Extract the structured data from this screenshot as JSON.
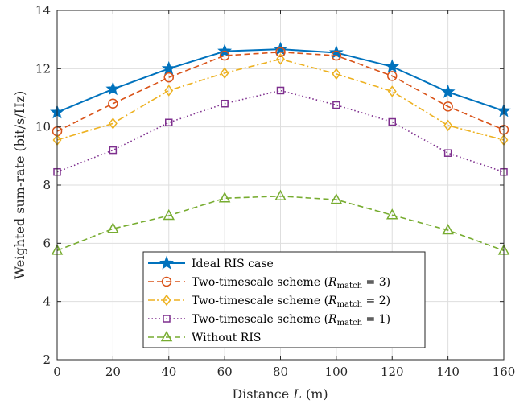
{
  "chart_data": {
    "type": "line",
    "title": "",
    "xlabel": "Distance L (m)",
    "ylabel": "Weighted sum-rate (bit/s/Hz)",
    "xlim": [
      0,
      160
    ],
    "ylim": [
      2,
      14
    ],
    "xticks": [
      0,
      20,
      40,
      60,
      80,
      100,
      120,
      140,
      160
    ],
    "yticks": [
      2,
      4,
      6,
      8,
      10,
      12,
      14
    ],
    "grid": true,
    "legend_position": "bottom-center",
    "x": [
      0,
      20,
      40,
      60,
      80,
      100,
      120,
      140,
      160
    ],
    "series": [
      {
        "name": "Ideal RIS case",
        "color": "#0072BD",
        "dash": "solid",
        "marker": "star",
        "values": [
          10.5,
          11.3,
          12.0,
          12.6,
          12.67,
          12.55,
          12.07,
          11.2,
          10.55
        ]
      },
      {
        "name": "Two-timescale scheme (R_match = 3)",
        "name_main": "Two-timescale scheme (",
        "name_var": "R",
        "name_sub": "match",
        "name_tail": " = 3)",
        "color": "#D95319",
        "dash": "dashed",
        "marker": "circle",
        "values": [
          9.85,
          10.8,
          11.7,
          12.45,
          12.57,
          12.45,
          11.75,
          10.7,
          9.9
        ]
      },
      {
        "name": "Two-timescale scheme (R_match = 2)",
        "name_main": "Two-timescale scheme (",
        "name_var": "R",
        "name_sub": "match",
        "name_tail": " = 2)",
        "color": "#EDB120",
        "dash": "dashdot",
        "marker": "diamond",
        "values": [
          9.55,
          10.12,
          11.25,
          11.85,
          12.33,
          11.82,
          11.22,
          10.05,
          9.55
        ]
      },
      {
        "name": "Two-timescale scheme (R_match = 1)",
        "name_main": "Two-timescale scheme (",
        "name_var": "R",
        "name_sub": "match",
        "name_tail": " = 1)",
        "color": "#7E2F8E",
        "dash": "dotted",
        "marker": "square",
        "values": [
          8.45,
          9.2,
          10.15,
          10.8,
          11.25,
          10.75,
          10.17,
          9.1,
          8.45
        ]
      },
      {
        "name": "Without RIS",
        "color": "#77AC30",
        "dash": "dashed",
        "marker": "triangle",
        "values": [
          5.75,
          6.5,
          6.95,
          7.55,
          7.62,
          7.5,
          6.97,
          6.45,
          5.75
        ]
      }
    ]
  }
}
